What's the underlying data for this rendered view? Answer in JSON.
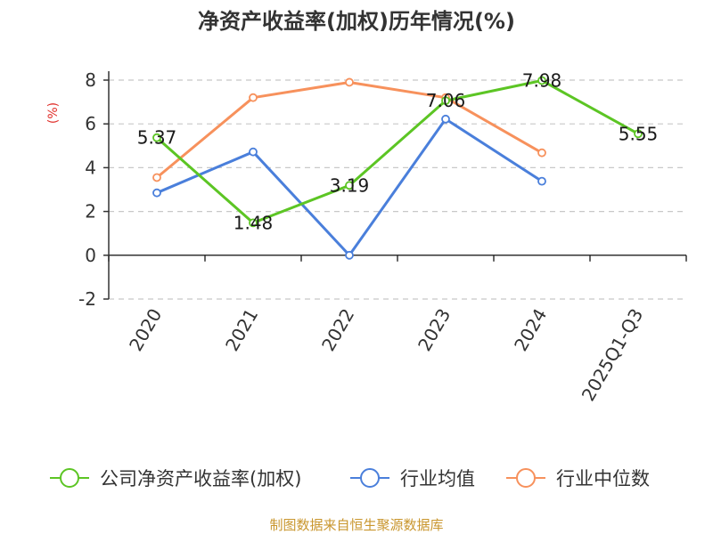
{
  "chart_data": {
    "type": "line",
    "title": "净资产收益率(加权)历年情况(%)",
    "ylabel": "(%)",
    "xlabel": "",
    "ylim": [
      -2,
      8
    ],
    "yticks": [
      -2,
      0,
      2,
      4,
      6,
      8
    ],
    "categories": [
      "2020",
      "2021",
      "2022",
      "2023",
      "2024",
      "2025Q1-Q3"
    ],
    "grid": true,
    "legend_position": "bottom",
    "series": [
      {
        "name": "公司净资产收益率(加权)",
        "color": "#5cc524",
        "values": [
          5.37,
          1.48,
          3.19,
          7.06,
          7.98,
          5.55
        ],
        "labels": [
          "5.37",
          "1.48",
          "3.19",
          "7.06",
          "7.98",
          "5.55"
        ]
      },
      {
        "name": "行业均值",
        "color": "#4a7fdb",
        "values": [
          2.85,
          4.72,
          0.0,
          6.22,
          3.38,
          null
        ]
      },
      {
        "name": "行业中位数",
        "color": "#f7915c",
        "values": [
          3.55,
          7.2,
          7.9,
          7.2,
          4.68,
          null
        ]
      }
    ],
    "source": "制图数据来自恒生聚源数据库"
  }
}
